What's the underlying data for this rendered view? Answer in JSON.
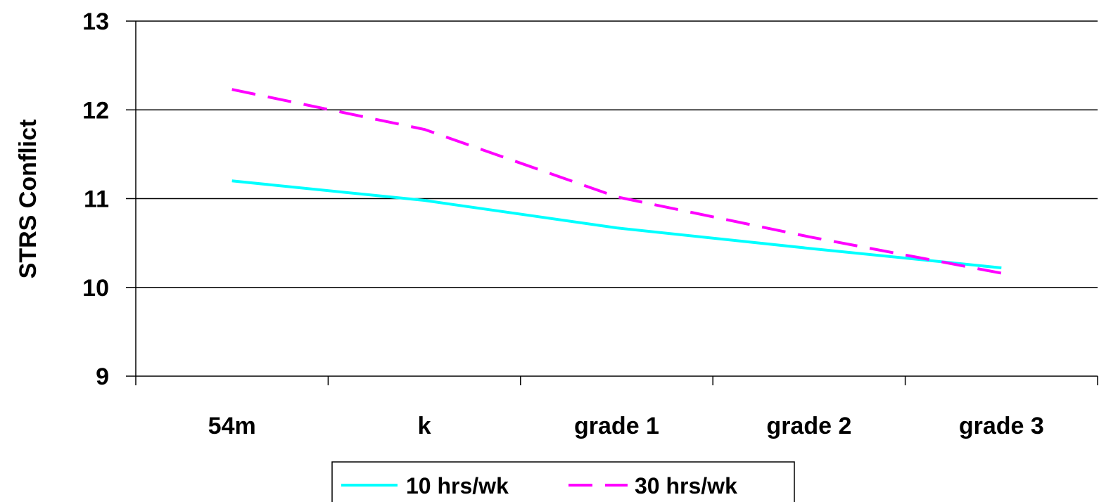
{
  "chart_data": {
    "type": "line",
    "categories": [
      "54m",
      "k",
      "grade 1",
      "grade 2",
      "grade 3"
    ],
    "series": [
      {
        "name": "10 hrs/wk",
        "values": [
          11.2,
          10.98,
          10.67,
          10.44,
          10.22
        ],
        "color": "#00FFFF",
        "dash": "solid"
      },
      {
        "name": "30 hrs/wk",
        "values": [
          12.23,
          11.78,
          11.02,
          10.57,
          10.16
        ],
        "color": "#FF00FF",
        "dash": "dashed"
      }
    ],
    "ylabel": "STRS Conflict",
    "xlabel": "",
    "ylim": [
      9,
      13
    ],
    "yticks": [
      "9",
      "10",
      "11",
      "12",
      "13"
    ],
    "grid": true,
    "legend_position": "bottom"
  }
}
